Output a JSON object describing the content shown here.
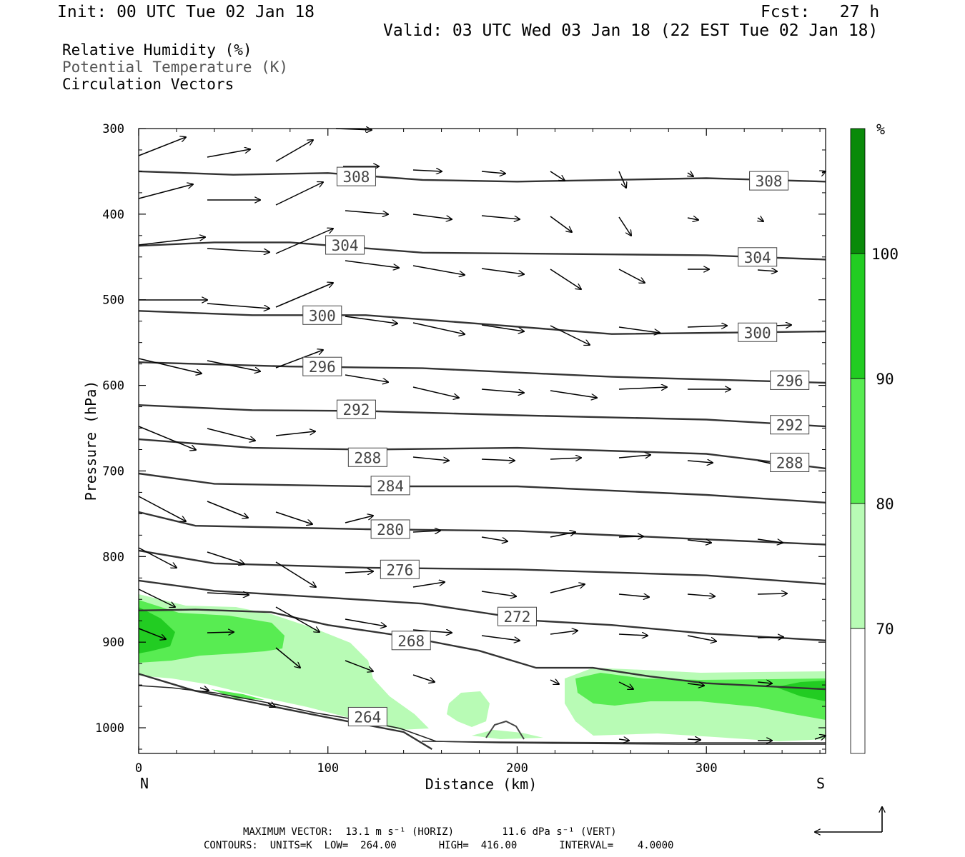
{
  "header": {
    "init": "Init: 00 UTC Tue 02 Jan 18",
    "fcst": "Fcst:   27 h",
    "valid": "Valid: 03 UTC Wed 03 Jan 18 (22 EST Tue 02 Jan 18)"
  },
  "legend": {
    "line1": "Relative Humidity (%)",
    "line2": "Potential Temperature (K)",
    "line3": "Circulation Vectors"
  },
  "footer": {
    "line1": "MAXIMUM VECTOR:  13.1 m s⁻¹ (HORIZ)        11.6 dPa s⁻¹ (VERT)",
    "line2": "CONTOURS:  UNITS=K  LOW=  264.00       HIGH=  416.00       INTERVAL=    4.0000"
  },
  "chart_data": {
    "type": "cross-section",
    "xlabel": "Distance (km)",
    "ylabel": "Pressure (hPa)",
    "xlim": [
      0,
      363
    ],
    "ylim": [
      1030,
      300
    ],
    "x_ticks": [
      "0",
      "100",
      "200",
      "300"
    ],
    "y_ticks": [
      "300",
      "400",
      "500",
      "600",
      "700",
      "800",
      "900",
      "1000"
    ],
    "x_end_labels": {
      "left": "N",
      "right": "S"
    },
    "colorbar": {
      "unit": "%",
      "levels": [
        "70",
        "80",
        "90",
        "100"
      ],
      "colors": [
        "#ffffff",
        "#b8fbb5",
        "#58ec52",
        "#22cc22",
        "#0a8a0a"
      ]
    },
    "theta_labels": [
      {
        "label": "308",
        "x": 115,
        "p": 356
      },
      {
        "label": "308",
        "x": 333,
        "p": 361
      },
      {
        "label": "304",
        "x": 109,
        "p": 436
      },
      {
        "label": "304",
        "x": 327,
        "p": 450
      },
      {
        "label": "300",
        "x": 97,
        "p": 518
      },
      {
        "label": "300",
        "x": 327,
        "p": 538
      },
      {
        "label": "296",
        "x": 97,
        "p": 578
      },
      {
        "label": "296",
        "x": 344,
        "p": 594
      },
      {
        "label": "292",
        "x": 115,
        "p": 628
      },
      {
        "label": "292",
        "x": 344,
        "p": 646
      },
      {
        "label": "288",
        "x": 121,
        "p": 684
      },
      {
        "label": "288",
        "x": 344,
        "p": 690
      },
      {
        "label": "284",
        "x": 133,
        "p": 717
      },
      {
        "label": "280",
        "x": 133,
        "p": 768
      },
      {
        "label": "276",
        "x": 138,
        "p": 815
      },
      {
        "label": "272",
        "x": 200,
        "p": 870
      },
      {
        "label": "268",
        "x": 144,
        "p": 898
      },
      {
        "label": "264",
        "x": 121,
        "p": 987
      }
    ],
    "theta_contours": [
      {
        "value": 308,
        "points": [
          [
            0,
            350
          ],
          [
            50,
            354
          ],
          [
            100,
            352
          ],
          [
            150,
            360
          ],
          [
            200,
            362
          ],
          [
            250,
            360
          ],
          [
            300,
            358
          ],
          [
            363,
            362
          ]
        ]
      },
      {
        "value": 304,
        "points": [
          [
            0,
            437
          ],
          [
            40,
            433
          ],
          [
            80,
            433
          ],
          [
            150,
            445
          ],
          [
            250,
            447
          ],
          [
            300,
            448
          ],
          [
            363,
            453
          ]
        ]
      },
      {
        "value": 300,
        "points": [
          [
            0,
            513
          ],
          [
            60,
            518
          ],
          [
            120,
            518
          ],
          [
            180,
            528
          ],
          [
            250,
            540
          ],
          [
            363,
            537
          ]
        ]
      },
      {
        "value": 296,
        "points": [
          [
            0,
            573
          ],
          [
            80,
            578
          ],
          [
            150,
            580
          ],
          [
            250,
            590
          ],
          [
            363,
            597
          ]
        ]
      },
      {
        "value": 292,
        "points": [
          [
            0,
            623
          ],
          [
            60,
            629
          ],
          [
            120,
            630
          ],
          [
            200,
            635
          ],
          [
            300,
            640
          ],
          [
            363,
            648
          ]
        ]
      },
      {
        "value": 288,
        "points": [
          [
            0,
            663
          ],
          [
            60,
            673
          ],
          [
            120,
            675
          ],
          [
            200,
            673
          ],
          [
            300,
            680
          ],
          [
            363,
            697
          ]
        ]
      },
      {
        "value": 284,
        "points": [
          [
            0,
            703
          ],
          [
            40,
            715
          ],
          [
            120,
            718
          ],
          [
            200,
            718
          ],
          [
            300,
            728
          ],
          [
            363,
            737
          ]
        ]
      },
      {
        "value": 280,
        "points": [
          [
            0,
            748
          ],
          [
            30,
            764
          ],
          [
            120,
            768
          ],
          [
            200,
            770
          ],
          [
            300,
            780
          ],
          [
            363,
            786
          ]
        ]
      },
      {
        "value": 276,
        "points": [
          [
            0,
            793
          ],
          [
            40,
            808
          ],
          [
            120,
            813
          ],
          [
            200,
            815
          ],
          [
            300,
            822
          ],
          [
            363,
            832
          ]
        ]
      },
      {
        "value": 272,
        "points": [
          [
            0,
            828
          ],
          [
            40,
            840
          ],
          [
            100,
            848
          ],
          [
            150,
            855
          ],
          [
            210,
            875
          ],
          [
            250,
            880
          ],
          [
            300,
            890
          ],
          [
            363,
            898
          ]
        ]
      },
      {
        "value": 268,
        "points": [
          [
            0,
            863
          ],
          [
            30,
            862
          ],
          [
            70,
            865
          ],
          [
            100,
            880
          ],
          [
            140,
            893
          ],
          [
            180,
            910
          ],
          [
            210,
            930
          ],
          [
            240,
            930
          ],
          [
            270,
            940
          ],
          [
            300,
            948
          ],
          [
            363,
            955
          ]
        ]
      },
      {
        "value": 264,
        "points": [
          [
            0,
            937
          ],
          [
            30,
            957
          ],
          [
            100,
            988
          ],
          [
            140,
            1005
          ],
          [
            155,
            1025
          ]
        ]
      }
    ],
    "rh_regions": [
      {
        "level": "70-80",
        "shape": "low-level moist layer north and south"
      },
      {
        "level": "80-90",
        "shape": "core near 900 hPa north and 960 hPa south"
      },
      {
        "level": "90-100",
        "shape": "small cores at 0-20 km near 900 hPa and 340 km near 960 hPa"
      }
    ]
  }
}
